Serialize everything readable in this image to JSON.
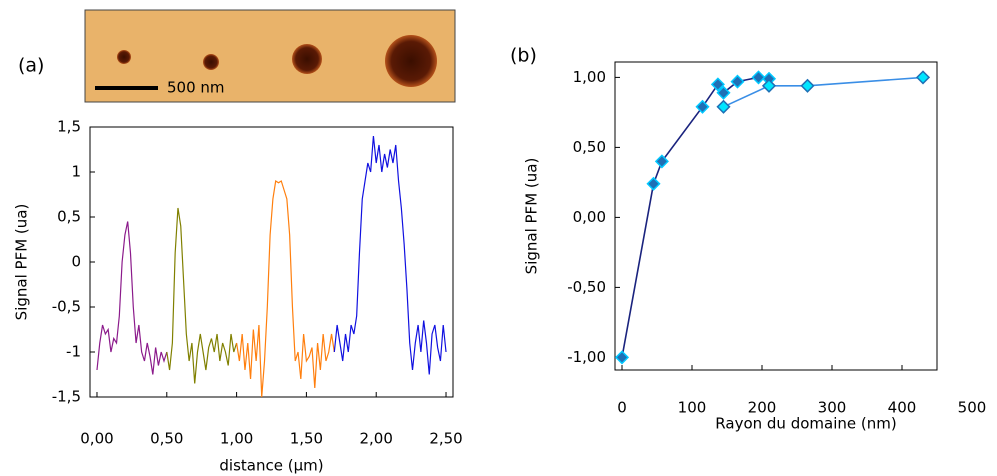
{
  "figure": {
    "panels": [
      {
        "label": "(a)",
        "scale_bar": "500 nm"
      },
      {
        "label": "(b)"
      }
    ]
  },
  "chart_data": [
    {
      "type": "line",
      "xlabel": "distance (µm)",
      "ylabel": "Signal PFM (ua)",
      "xlim": [
        -0.05,
        2.55
      ],
      "ylim": [
        -1.5,
        1.5
      ],
      "xticks": [
        {
          "value": 0,
          "label": "0,00"
        },
        {
          "value": 0.5,
          "label": "0,50"
        },
        {
          "value": 1,
          "label": "1,00"
        },
        {
          "value": 1.5,
          "label": "1,50"
        },
        {
          "value": 2,
          "label": "2,00"
        },
        {
          "value": 2.5,
          "label": "2,50"
        }
      ],
      "yticks": [
        {
          "value": 1.5,
          "label": "1,5"
        },
        1,
        {
          "value": 0.5,
          "label": "0,5"
        },
        0,
        {
          "value": -0.5,
          "label": "-0,5"
        },
        -1,
        {
          "value": -1.5,
          "label": "-1,5"
        }
      ],
      "markers": false,
      "series": [
        {
          "color": "#8b1a8b",
          "x": [
            0,
            0.02,
            0.04,
            0.06,
            0.08,
            0.1,
            0.12,
            0.14,
            0.16,
            0.18,
            0.2,
            0.22,
            0.24,
            0.26,
            0.28,
            0.3,
            0.32,
            0.34,
            0.36,
            0.38,
            0.4,
            0.42,
            0.44,
            0.46,
            0.48,
            0.5
          ],
          "values": [
            -1.2,
            -0.9,
            -0.7,
            -0.8,
            -0.75,
            -1.0,
            -0.85,
            -0.9,
            -0.6,
            0.0,
            0.3,
            0.45,
            0.1,
            -0.5,
            -0.9,
            -0.7,
            -1.0,
            -1.1,
            -0.9,
            -1.05,
            -1.25,
            -0.95,
            -1.15,
            -1.0,
            -1.1,
            -1.0
          ]
        },
        {
          "color": "#808000",
          "x": [
            0.5,
            0.52,
            0.54,
            0.56,
            0.58,
            0.6,
            0.62,
            0.64,
            0.66,
            0.68,
            0.7,
            0.72,
            0.74,
            0.76,
            0.78,
            0.8,
            0.82,
            0.84,
            0.86,
            0.88,
            0.9,
            0.92,
            0.94,
            0.96,
            0.98,
            1.0
          ],
          "values": [
            -1.0,
            -1.2,
            -0.9,
            0.1,
            0.6,
            0.4,
            -0.2,
            -0.8,
            -1.1,
            -0.9,
            -1.35,
            -1.0,
            -0.8,
            -1.0,
            -1.2,
            -0.95,
            -0.85,
            -1.0,
            -0.8,
            -1.1,
            -0.9,
            -1.0,
            -1.15,
            -0.8,
            -1.0,
            -0.9
          ]
        },
        {
          "color": "#ff7f0e",
          "x": [
            1.0,
            1.02,
            1.04,
            1.06,
            1.08,
            1.1,
            1.12,
            1.14,
            1.16,
            1.18,
            1.2,
            1.22,
            1.24,
            1.26,
            1.28,
            1.3,
            1.32,
            1.34,
            1.36,
            1.38,
            1.4,
            1.42,
            1.44,
            1.46,
            1.48,
            1.5,
            1.52,
            1.54,
            1.56,
            1.58,
            1.6,
            1.62,
            1.64,
            1.66,
            1.68,
            1.7
          ],
          "values": [
            -0.9,
            -1.1,
            -0.8,
            -1.2,
            -0.9,
            -1.3,
            -0.75,
            -1.1,
            -0.7,
            -1.5,
            -1.1,
            -0.5,
            0.3,
            0.7,
            0.9,
            0.88,
            0.9,
            0.8,
            0.7,
            0.3,
            -0.5,
            -1.1,
            -1.0,
            -1.3,
            -0.8,
            -1.1,
            -1.05,
            -0.95,
            -1.4,
            -0.9,
            -1.2,
            -0.8,
            -1.1,
            -1.0,
            -0.8,
            -1.0
          ]
        },
        {
          "color": "#1010e0",
          "x": [
            1.7,
            1.72,
            1.74,
            1.76,
            1.78,
            1.8,
            1.82,
            1.84,
            1.86,
            1.88,
            1.9,
            1.92,
            1.94,
            1.96,
            1.98,
            2.0,
            2.02,
            2.04,
            2.06,
            2.08,
            2.1,
            2.12,
            2.14,
            2.16,
            2.18,
            2.2,
            2.22,
            2.24,
            2.26,
            2.28,
            2.3,
            2.32,
            2.34,
            2.36,
            2.38,
            2.4,
            2.42,
            2.44,
            2.46,
            2.48,
            2.5
          ],
          "values": [
            -1.0,
            -0.7,
            -0.9,
            -1.1,
            -0.8,
            -1.0,
            -0.7,
            -0.8,
            -0.6,
            0.1,
            0.7,
            0.9,
            1.1,
            1.0,
            1.4,
            1.1,
            1.3,
            1.0,
            1.2,
            1.05,
            1.25,
            1.1,
            1.3,
            0.9,
            0.6,
            0.2,
            -0.3,
            -0.9,
            -1.2,
            -0.9,
            -0.7,
            -1.0,
            -0.65,
            -0.9,
            -1.25,
            -0.8,
            -0.7,
            -0.95,
            -1.1,
            -0.7,
            -1.0
          ]
        }
      ]
    },
    {
      "type": "line",
      "xlabel": "Rayon du domaine (nm)",
      "ylabel": "Signal PFM (ua)",
      "xlim": [
        -10,
        450
      ],
      "ylim": [
        -1.09,
        1.11
      ],
      "xticks": [
        0,
        100,
        200,
        300,
        400,
        500
      ],
      "yticks": [
        {
          "value": 1,
          "label": "1,00"
        },
        {
          "value": 0.5,
          "label": "0,50"
        },
        {
          "value": 0,
          "label": "0,00"
        },
        {
          "value": -0.5,
          "label": "-0,50"
        },
        {
          "value": -1,
          "label": "-1,00"
        }
      ],
      "markers": true,
      "series": [
        {
          "color": "#1a237e",
          "marker_color": "#1f6fb5",
          "x": [
            0,
            45,
            57,
            115,
            137,
            145,
            165,
            195,
            210
          ],
          "values": [
            -1.0,
            0.24,
            0.4,
            0.79,
            0.95,
            0.89,
            0.97,
            1.0,
            0.99
          ]
        },
        {
          "color": "#3a8ee6",
          "marker_color": "#00e5ff",
          "x": [
            145,
            210,
            265,
            430
          ],
          "values": [
            0.79,
            0.94,
            0.94,
            1.0
          ]
        }
      ]
    }
  ]
}
